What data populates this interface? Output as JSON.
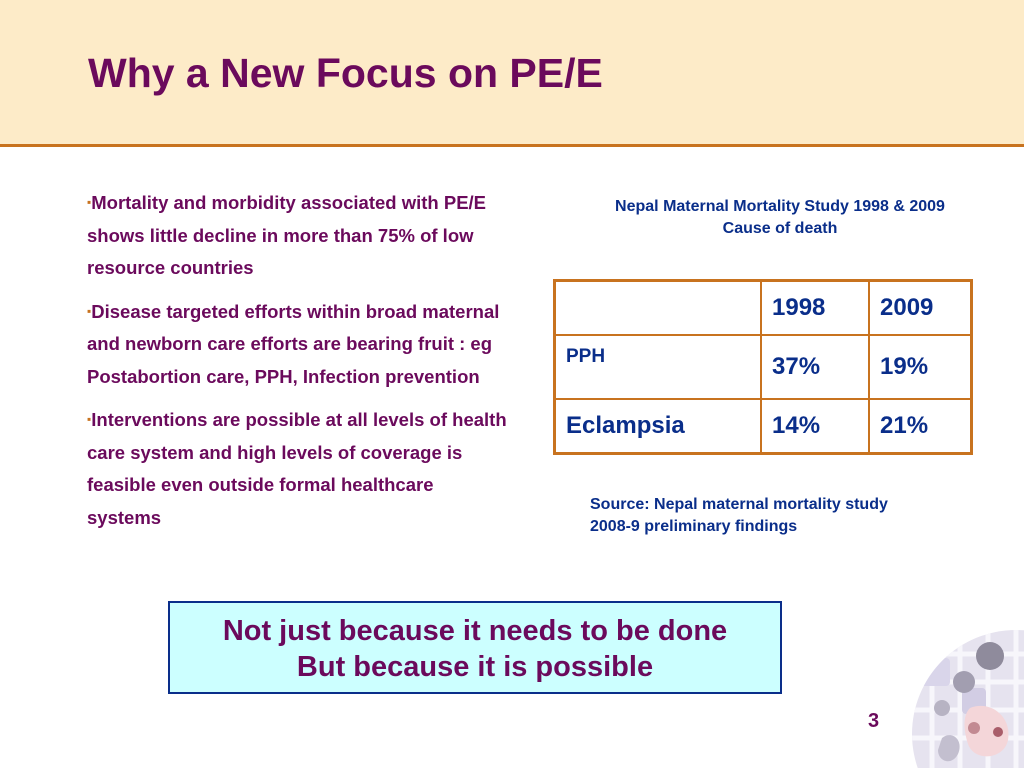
{
  "slide": {
    "title": "Why a New Focus on PE/E",
    "page_number": "3",
    "bullets": [
      {
        "marker": "▪",
        "text": "Mortality and morbidity associated with PE/E shows little decline in more than 75% of low resource countries"
      },
      {
        "marker": "▪",
        "text": "Disease targeted efforts within broad maternal and newborn care efforts are bearing fruit : eg Postabortion care, PPH, Infection prevention"
      },
      {
        "marker": "▪",
        "text": "Interventions are possible at all levels of health care system and high levels of coverage is feasible even outside formal healthcare systems"
      }
    ],
    "study": {
      "caption_line1": "Nepal Maternal Mortality Study 1998 & 2009",
      "caption_line2": "Cause of death",
      "table": {
        "headers": [
          "",
          "1998",
          "2009"
        ],
        "rows": [
          [
            "PPH",
            "37%",
            "19%"
          ],
          [
            "Eclampsia",
            "14%",
            "21%"
          ]
        ]
      },
      "source_line1": "Source: Nepal maternal mortality study",
      "source_line2": "2008-9 preliminary findings"
    },
    "callout": {
      "line1": "Not just because it needs to be done",
      "line2": "But because it is possible"
    }
  },
  "colors": {
    "header_background": "#fdebc8",
    "accent_orange": "#c8731f",
    "title_purple": "#6b0a5c",
    "table_blue": "#0a2e8a",
    "callout_background": "#ccffff"
  },
  "icons": {
    "decoration": "abstract-collage-image"
  }
}
